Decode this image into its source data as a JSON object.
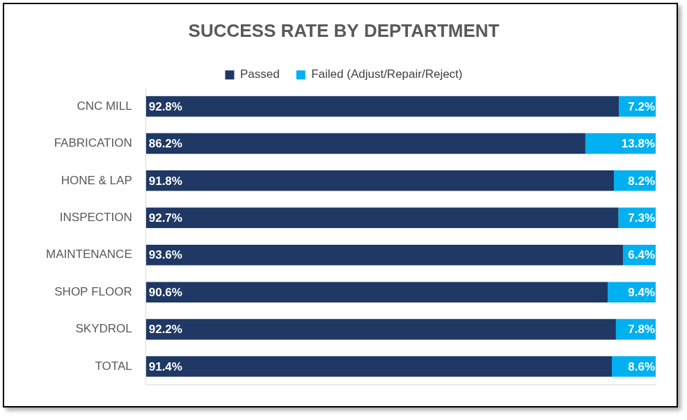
{
  "chart_data": {
    "type": "bar",
    "title": "SUCCESS RATE BY DEPTARTMENT",
    "orientation": "horizontal",
    "stacked": true,
    "grid": false,
    "legend": "top",
    "data_labels": true,
    "tick_labels": "y",
    "xlim": [
      0,
      100
    ],
    "categories": [
      "CNC MILL",
      "FABRICATION",
      "HONE & LAP",
      "INSPECTION",
      "MAINTENANCE",
      "SHOP FLOOR",
      "SKYDROL",
      "TOTAL"
    ],
    "series": [
      {
        "name": "Passed",
        "color": "#1f3864",
        "values": [
          92.8,
          86.2,
          91.8,
          92.7,
          93.6,
          90.6,
          92.2,
          91.4
        ],
        "value_labels": [
          "92.8%",
          "86.2%",
          "91.8%",
          "92.7%",
          "93.6%",
          "90.6%",
          "92.2%",
          "91.4%"
        ]
      },
      {
        "name": "Failed (Adjust/Repair/Reject)",
        "color": "#00b0f0",
        "values": [
          7.2,
          13.8,
          8.2,
          7.3,
          6.4,
          9.4,
          7.8,
          8.6
        ],
        "value_labels": [
          "7.2%",
          "13.8%",
          "8.2%",
          "7.3%",
          "6.4%",
          "9.4%",
          "7.8%",
          "8.6%"
        ]
      }
    ]
  }
}
